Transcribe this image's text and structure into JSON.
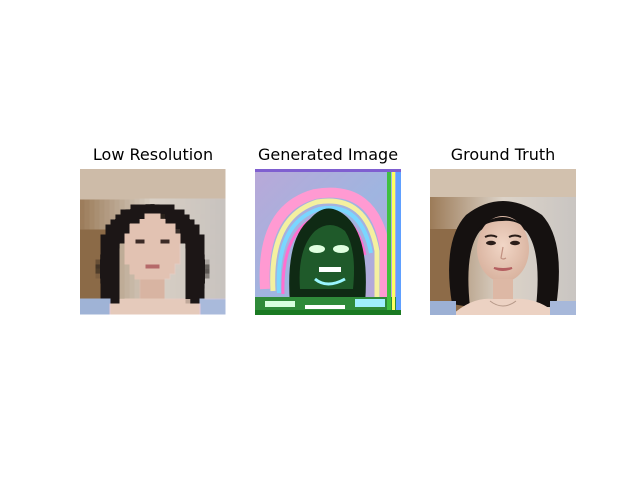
{
  "figure": {
    "panels": [
      {
        "title": "Low Resolution"
      },
      {
        "title": "Generated Image"
      },
      {
        "title": "Ground Truth"
      }
    ]
  }
}
